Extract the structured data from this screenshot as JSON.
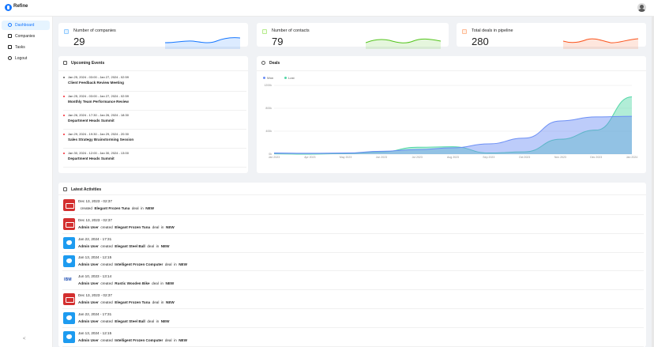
{
  "app": {
    "brand": "Refine"
  },
  "sidebar": {
    "items": [
      {
        "label": "Dashboard",
        "icon": "dashboard-icon"
      },
      {
        "label": "Companies",
        "icon": "shop-icon"
      },
      {
        "label": "Tasks",
        "icon": "tasks-icon"
      },
      {
        "label": "Logout",
        "icon": "logout-icon"
      }
    ],
    "collapse": "<"
  },
  "kpis": [
    {
      "title": "Number of companies",
      "value": "29",
      "color": "#1677ff"
    },
    {
      "title": "Number of contacts",
      "value": "79",
      "color": "#52c41a"
    },
    {
      "title": "Total deals in pipeline",
      "value": "280",
      "color": "#fa541c"
    }
  ],
  "events": {
    "title": "Upcoming Events",
    "items": [
      {
        "time": "Jan 25, 2024 - 03:00 - Jan 27, 2024 - 02:59",
        "name": "Client Feedback Review Meeting",
        "color": "#595959"
      },
      {
        "time": "Jan 25, 2024 - 03:00 - Jan 27, 2024 - 02:59",
        "name": "Monthly Team Performance Review",
        "color": "#f5222d"
      },
      {
        "time": "Jan 26, 2024 - 17:30 - Jan 26, 2024 - 18:30",
        "name": "Department Heads Summit",
        "color": "#f5222d"
      },
      {
        "time": "Jan 29, 2024 - 19:30 - Jan 29, 2024 - 20:30",
        "name": "Sales Strategy Brainstorming Session",
        "color": "#f5222d"
      },
      {
        "time": "Jan 30, 2024 - 12:00 - Jan 30, 2024 - 13:00",
        "name": "Department Heads Summit",
        "color": "#f5222d"
      }
    ]
  },
  "deals": {
    "title": "Deals",
    "legend": [
      {
        "name": "Won",
        "color": "#6c8ff5"
      },
      {
        "name": "Lost",
        "color": "#52d6a6"
      }
    ]
  },
  "chart_data": {
    "type": "area",
    "x": [
      "Jan 2023",
      "Apr 2023",
      "May 2023",
      "Jun 2023",
      "Jul 2023",
      "Aug 2023",
      "Sep 2023",
      "Oct 2023",
      "Nov 2023",
      "Dec 2023",
      "Jan 2024"
    ],
    "y_ticks": [
      "0k",
      "400k",
      "800k",
      "1200k"
    ],
    "ylim": [
      0,
      1200000
    ],
    "series": [
      {
        "name": "Won",
        "values": [
          20000,
          15000,
          20000,
          50000,
          80000,
          110000,
          180000,
          280000,
          580000,
          650000,
          660000
        ]
      },
      {
        "name": "Lost",
        "values": [
          5000,
          0,
          10000,
          40000,
          120000,
          130000,
          20000,
          40000,
          260000,
          420000,
          1000000
        ]
      }
    ],
    "grid": true,
    "legend": "top-left"
  },
  "activities": {
    "title": "Latest Activities",
    "items": [
      {
        "logo": "red",
        "date": "Dec 13, 2023 - 02:37",
        "user": "",
        "action": "created",
        "deal": "Elegant Frozen Tuna",
        "mid": "deal",
        "in": "in",
        "stage": "NEW"
      },
      {
        "logo": "red",
        "date": "Dec 13, 2023 - 02:37",
        "user": "Admin User",
        "action": "created",
        "deal": "Elegant Frozen Tuna",
        "mid": "deal",
        "in": "in",
        "stage": "NEW"
      },
      {
        "logo": "blue",
        "date": "Jan 22, 2024 - 17:31",
        "user": "Admin User",
        "action": "created",
        "deal": "Elegant Steel Ball",
        "mid": "deal",
        "in": "in",
        "stage": "NEW"
      },
      {
        "logo": "blue",
        "date": "Jan 13, 2024 - 12:15",
        "user": "Admin User",
        "action": "created",
        "deal": "Intelligent Frozen Computer",
        "mid": "deal",
        "in": "in",
        "stage": "NEW"
      },
      {
        "logo": "ibm",
        "date": "Jun 10, 2023 - 13:14",
        "user": "Admin User",
        "action": "created",
        "deal": "Rustic Wooden Bike",
        "mid": "deal",
        "in": "in",
        "stage": "NEW"
      },
      {
        "logo": "red",
        "date": "Dec 13, 2023 - 02:37",
        "user": "Admin User",
        "action": "created",
        "deal": "Elegant Frozen Tuna",
        "mid": "deal",
        "in": "in",
        "stage": "NEW"
      },
      {
        "logo": "blue",
        "date": "Jan 22, 2024 - 17:31",
        "user": "Admin User",
        "action": "created",
        "deal": "Elegant Steel Ball",
        "mid": "deal",
        "in": "in",
        "stage": "NEW"
      },
      {
        "logo": "blue",
        "date": "Jan 13, 2024 - 12:15",
        "user": "Admin User",
        "action": "created",
        "deal": "Intelligent Frozen Computer",
        "mid": "deal",
        "in": "in",
        "stage": "NEW"
      }
    ]
  }
}
